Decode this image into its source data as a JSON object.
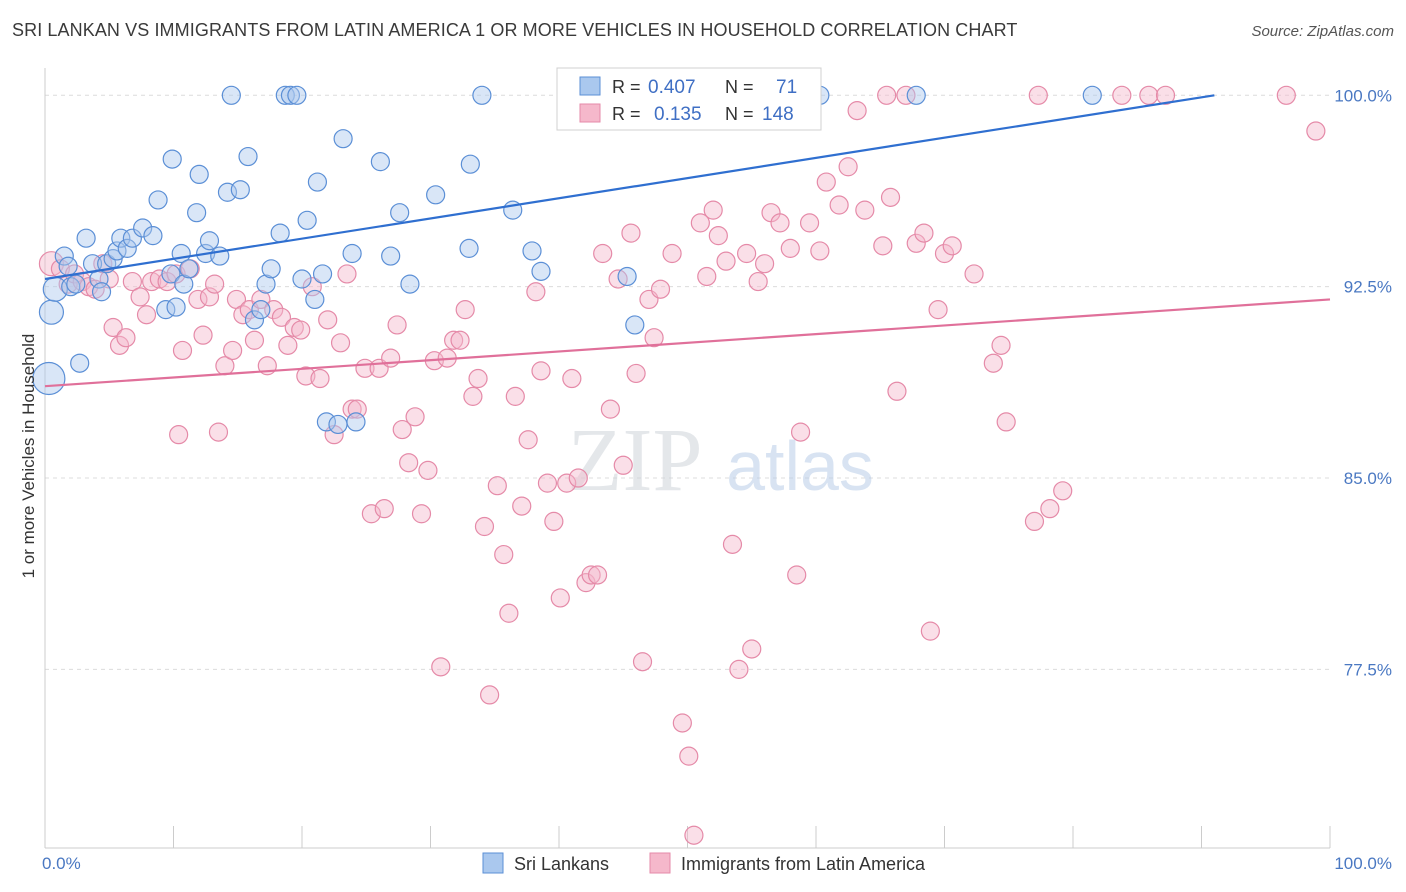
{
  "title": "SRI LANKAN VS IMMIGRANTS FROM LATIN AMERICA 1 OR MORE VEHICLES IN HOUSEHOLD CORRELATION CHART",
  "source": "Source: ZipAtlas.com",
  "watermark": {
    "zip": "ZIP",
    "atlas": "atlas"
  },
  "colors": {
    "blue_fill": "#aac8ee",
    "blue_stroke": "#5b8fd6",
    "blue_line": "#2f6fd0",
    "pink_fill": "#f5b8cb",
    "pink_stroke": "#e58aa8",
    "pink_line": "#e0709a",
    "tick_label": "#4a78c2",
    "grid": "#dcdcdc"
  },
  "legend": {
    "rows": [
      {
        "r_label": "R =",
        "r_value": "0.407",
        "n_label": "N =",
        "n_value": "71"
      },
      {
        "r_label": "R =",
        "r_value": "0.135",
        "n_label": "N =",
        "n_value": "148"
      }
    ]
  },
  "bottom_legend": [
    "Sri Lankans",
    "Immigrants from Latin America"
  ],
  "chart_data": {
    "type": "scatter",
    "title": "SRI LANKAN VS IMMIGRANTS FROM LATIN AMERICA 1 OR MORE VEHICLES IN HOUSEHOLD CORRELATION CHART",
    "xlabel": "",
    "ylabel": "1 or more Vehicles in Household",
    "xlim": [
      0,
      100
    ],
    "ylim": [
      70.5,
      100.6
    ],
    "x_tick_labels": [
      {
        "value": 0,
        "label": "0.0%"
      },
      {
        "value": 100,
        "label": "100.0%"
      }
    ],
    "x_minor_ticks": [
      0,
      10,
      20,
      30,
      40,
      50,
      60,
      70,
      80,
      90,
      100
    ],
    "y_ticks": [
      {
        "value": 100.0,
        "label": "100.0%"
      },
      {
        "value": 92.5,
        "label": "92.5%"
      },
      {
        "value": 85.0,
        "label": "85.0%"
      },
      {
        "value": 77.5,
        "label": "77.5%"
      }
    ],
    "grid": true,
    "legend_position": "top-center",
    "series": [
      {
        "name": "Sri Lankans",
        "color": "#aac8ee",
        "R": 0.407,
        "N": 71,
        "trendline": {
          "x": [
            0,
            91
          ],
          "y": [
            92.8,
            100.0
          ]
        },
        "points": [
          [
            0.3,
            88.9,
            3
          ],
          [
            0.5,
            91.5,
            2
          ],
          [
            0.8,
            92.4,
            2
          ],
          [
            1.5,
            93.7,
            1
          ],
          [
            1.8,
            93.3,
            1
          ],
          [
            2.0,
            92.5,
            1
          ],
          [
            2.4,
            92.6,
            1
          ],
          [
            2.7,
            89.5,
            1
          ],
          [
            3.2,
            94.4,
            1
          ],
          [
            3.7,
            93.4,
            1
          ],
          [
            4.2,
            92.8,
            1
          ],
          [
            4.4,
            92.3,
            1
          ],
          [
            4.8,
            93.4,
            1
          ],
          [
            5.3,
            93.6,
            1
          ],
          [
            5.6,
            93.9,
            1
          ],
          [
            5.9,
            94.4,
            1
          ],
          [
            6.4,
            94.0,
            1
          ],
          [
            6.8,
            94.4,
            1
          ],
          [
            7.6,
            94.8,
            1
          ],
          [
            8.4,
            94.5,
            1
          ],
          [
            8.8,
            95.9,
            1
          ],
          [
            9.4,
            91.6,
            1
          ],
          [
            9.8,
            93.0,
            1
          ],
          [
            9.9,
            97.5,
            1
          ],
          [
            10.2,
            91.7,
            1
          ],
          [
            10.6,
            93.8,
            1
          ],
          [
            10.8,
            92.6,
            1
          ],
          [
            11.2,
            93.2,
            1
          ],
          [
            11.8,
            95.4,
            1
          ],
          [
            12.0,
            96.9,
            1
          ],
          [
            12.5,
            93.8,
            1
          ],
          [
            12.8,
            94.3,
            1
          ],
          [
            13.6,
            93.7,
            1
          ],
          [
            14.2,
            96.2,
            1
          ],
          [
            14.5,
            100.0,
            1
          ],
          [
            15.2,
            96.3,
            1
          ],
          [
            15.8,
            97.6,
            1
          ],
          [
            16.3,
            91.2,
            1
          ],
          [
            16.8,
            91.6,
            1
          ],
          [
            17.2,
            92.6,
            1
          ],
          [
            17.6,
            93.2,
            1
          ],
          [
            18.3,
            94.6,
            1
          ],
          [
            18.7,
            100.0,
            1
          ],
          [
            19.1,
            100.0,
            1
          ],
          [
            19.6,
            100.0,
            1
          ],
          [
            20.0,
            92.8,
            1
          ],
          [
            20.4,
            95.1,
            1
          ],
          [
            21.0,
            92.0,
            1
          ],
          [
            21.2,
            96.6,
            1
          ],
          [
            21.6,
            93.0,
            1
          ],
          [
            21.9,
            87.2,
            1
          ],
          [
            22.8,
            87.1,
            1
          ],
          [
            23.2,
            98.3,
            1
          ],
          [
            23.9,
            93.8,
            1
          ],
          [
            24.2,
            87.2,
            1
          ],
          [
            26.1,
            97.4,
            1
          ],
          [
            26.9,
            93.7,
            1
          ],
          [
            27.6,
            95.4,
            1
          ],
          [
            28.4,
            92.6,
            1
          ],
          [
            30.4,
            96.1,
            1
          ],
          [
            33.1,
            97.3,
            1
          ],
          [
            33.0,
            94.0,
            1
          ],
          [
            34.0,
            100.0,
            1
          ],
          [
            36.4,
            95.5,
            1
          ],
          [
            37.9,
            93.9,
            1
          ],
          [
            38.6,
            93.1,
            1
          ],
          [
            41.2,
            100.0,
            1
          ],
          [
            45.3,
            92.9,
            1
          ],
          [
            45.9,
            91.0,
            1
          ],
          [
            81.5,
            100.0,
            1
          ],
          [
            67.8,
            100.0,
            1
          ],
          [
            60.3,
            100.0,
            1
          ]
        ]
      },
      {
        "name": "Immigrants from Latin America",
        "color": "#f5b8cb",
        "R": 0.135,
        "N": 148,
        "trendline": {
          "x": [
            0,
            100
          ],
          "y": [
            88.6,
            92.0
          ]
        },
        "points": [
          [
            0.5,
            93.4,
            2
          ],
          [
            1.2,
            93.2,
            1
          ],
          [
            1.8,
            92.6,
            1
          ],
          [
            2.3,
            93.0,
            1
          ],
          [
            2.9,
            92.7,
            1
          ],
          [
            3.4,
            92.5,
            1
          ],
          [
            3.9,
            92.4,
            1
          ],
          [
            4.5,
            93.4,
            1
          ],
          [
            5.0,
            92.8,
            1
          ],
          [
            5.3,
            90.9,
            1
          ],
          [
            5.8,
            90.2,
            1
          ],
          [
            6.3,
            90.5,
            1
          ],
          [
            6.8,
            92.7,
            1
          ],
          [
            7.4,
            92.1,
            1
          ],
          [
            7.9,
            91.4,
            1
          ],
          [
            8.3,
            92.7,
            1
          ],
          [
            8.9,
            92.8,
            1
          ],
          [
            9.5,
            92.7,
            1
          ],
          [
            10.2,
            93.0,
            1
          ],
          [
            10.7,
            90.0,
            1
          ],
          [
            10.4,
            86.7,
            1
          ],
          [
            11.3,
            93.2,
            1
          ],
          [
            11.9,
            92.0,
            1
          ],
          [
            12.3,
            90.6,
            1
          ],
          [
            12.8,
            92.1,
            1
          ],
          [
            13.2,
            92.6,
            1
          ],
          [
            13.5,
            86.8,
            1
          ],
          [
            14.0,
            89.4,
            1
          ],
          [
            14.6,
            90.0,
            1
          ],
          [
            14.9,
            92.0,
            1
          ],
          [
            15.4,
            91.4,
            1
          ],
          [
            15.9,
            91.6,
            1
          ],
          [
            16.3,
            90.4,
            1
          ],
          [
            16.8,
            92.0,
            1
          ],
          [
            17.3,
            89.4,
            1
          ],
          [
            17.8,
            91.6,
            1
          ],
          [
            18.4,
            91.3,
            1
          ],
          [
            18.9,
            90.2,
            1
          ],
          [
            19.4,
            90.9,
            1
          ],
          [
            19.9,
            90.8,
            1
          ],
          [
            20.3,
            89.0,
            1
          ],
          [
            20.8,
            92.5,
            1
          ],
          [
            21.4,
            88.9,
            1
          ],
          [
            22.0,
            91.2,
            1
          ],
          [
            22.5,
            86.7,
            1
          ],
          [
            23.0,
            90.3,
            1
          ],
          [
            23.5,
            93.0,
            1
          ],
          [
            23.9,
            87.7,
            1
          ],
          [
            24.3,
            87.7,
            1
          ],
          [
            24.9,
            89.3,
            1
          ],
          [
            25.4,
            83.6,
            1
          ],
          [
            26.0,
            89.3,
            1
          ],
          [
            26.4,
            83.8,
            1
          ],
          [
            26.9,
            89.7,
            1
          ],
          [
            27.4,
            91.0,
            1
          ],
          [
            27.8,
            86.9,
            1
          ],
          [
            28.3,
            85.6,
            1
          ],
          [
            28.8,
            87.4,
            1
          ],
          [
            29.3,
            83.6,
            1
          ],
          [
            29.8,
            85.3,
            1
          ],
          [
            30.3,
            89.6,
            1
          ],
          [
            30.8,
            77.6,
            1
          ],
          [
            31.3,
            89.7,
            1
          ],
          [
            31.8,
            90.4,
            1
          ],
          [
            32.3,
            90.4,
            1
          ],
          [
            32.7,
            91.6,
            1
          ],
          [
            33.3,
            88.2,
            1
          ],
          [
            33.7,
            88.9,
            1
          ],
          [
            34.2,
            83.1,
            1
          ],
          [
            34.6,
            76.5,
            1
          ],
          [
            35.2,
            84.7,
            1
          ],
          [
            35.7,
            82.0,
            1
          ],
          [
            36.1,
            79.7,
            1
          ],
          [
            36.6,
            88.2,
            1
          ],
          [
            37.1,
            83.9,
            1
          ],
          [
            37.6,
            86.5,
            1
          ],
          [
            38.2,
            92.3,
            1
          ],
          [
            38.6,
            89.2,
            1
          ],
          [
            39.1,
            84.8,
            1
          ],
          [
            39.6,
            83.3,
            1
          ],
          [
            40.1,
            80.3,
            1
          ],
          [
            40.6,
            84.8,
            1
          ],
          [
            41.0,
            88.9,
            1
          ],
          [
            41.5,
            85.0,
            1
          ],
          [
            42.1,
            80.9,
            1
          ],
          [
            42.5,
            81.2,
            1
          ],
          [
            43.0,
            81.2,
            1
          ],
          [
            43.4,
            93.8,
            1
          ],
          [
            44.0,
            87.7,
            1
          ],
          [
            44.6,
            92.8,
            1
          ],
          [
            45.0,
            85.5,
            1
          ],
          [
            45.6,
            94.6,
            1
          ],
          [
            46.0,
            89.1,
            1
          ],
          [
            46.5,
            77.8,
            1
          ],
          [
            47.0,
            92.0,
            1
          ],
          [
            47.4,
            90.5,
            1
          ],
          [
            47.9,
            92.4,
            1
          ],
          [
            48.8,
            93.8,
            1
          ],
          [
            49.6,
            75.4,
            1
          ],
          [
            50.1,
            74.1,
            1
          ],
          [
            50.5,
            71.0,
            1
          ],
          [
            51.0,
            95.0,
            1
          ],
          [
            51.5,
            92.9,
            1
          ],
          [
            52.0,
            95.5,
            1
          ],
          [
            52.4,
            94.5,
            1
          ],
          [
            53.0,
            93.5,
            1
          ],
          [
            53.5,
            82.4,
            1
          ],
          [
            54.0,
            77.5,
            1
          ],
          [
            54.6,
            93.8,
            1
          ],
          [
            55.0,
            78.3,
            1
          ],
          [
            55.5,
            92.7,
            1
          ],
          [
            56.0,
            93.4,
            1
          ],
          [
            56.5,
            95.4,
            1
          ],
          [
            57.2,
            95.0,
            1
          ],
          [
            58.0,
            94.0,
            1
          ],
          [
            58.5,
            81.2,
            1
          ],
          [
            58.8,
            86.8,
            1
          ],
          [
            59.5,
            95.0,
            1
          ],
          [
            60.3,
            93.9,
            1
          ],
          [
            60.8,
            96.6,
            1
          ],
          [
            61.8,
            95.7,
            1
          ],
          [
            62.5,
            97.2,
            1
          ],
          [
            63.2,
            99.4,
            1
          ],
          [
            63.8,
            95.5,
            1
          ],
          [
            65.2,
            94.1,
            1
          ],
          [
            65.8,
            96.0,
            1
          ],
          [
            66.3,
            88.4,
            1
          ],
          [
            67.0,
            100.0,
            1
          ],
          [
            67.8,
            94.2,
            1
          ],
          [
            68.4,
            94.6,
            1
          ],
          [
            68.9,
            79.0,
            1
          ],
          [
            69.5,
            91.6,
            1
          ],
          [
            70.0,
            93.8,
            1
          ],
          [
            70.6,
            94.1,
            1
          ],
          [
            72.3,
            93.0,
            1
          ],
          [
            73.8,
            89.5,
            1
          ],
          [
            74.4,
            90.2,
            1
          ],
          [
            74.8,
            87.2,
            1
          ],
          [
            77.0,
            83.3,
            1
          ],
          [
            78.2,
            83.8,
            1
          ],
          [
            79.2,
            84.5,
            1
          ],
          [
            77.3,
            100.0,
            1
          ],
          [
            83.8,
            100.0,
            1
          ],
          [
            85.9,
            100.0,
            1
          ],
          [
            87.2,
            100.0,
            1
          ],
          [
            96.6,
            100.0,
            1
          ],
          [
            98.9,
            98.6,
            1
          ],
          [
            65.5,
            100.0,
            1
          ],
          [
            58.2,
            100.0,
            1
          ]
        ]
      }
    ]
  }
}
